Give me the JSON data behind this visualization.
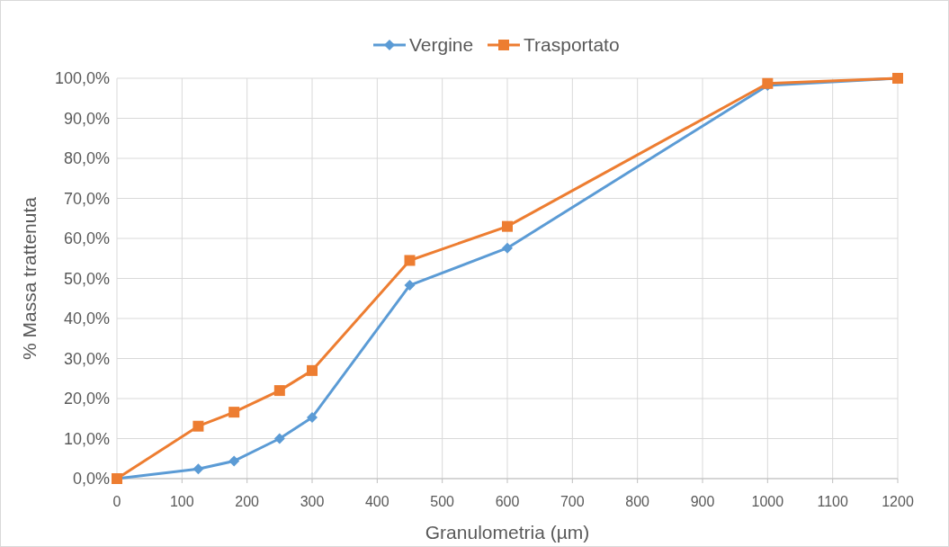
{
  "chart_data": {
    "type": "line",
    "xlabel": "Granulometria (µm)",
    "ylabel": "% Massa trattenuta",
    "xlim": [
      0,
      1200
    ],
    "xticks": [
      0,
      100,
      200,
      300,
      400,
      500,
      600,
      700,
      800,
      900,
      1000,
      1100,
      1200
    ],
    "ylim": [
      0,
      100
    ],
    "yticks": [
      {
        "value": 0,
        "label": "0,0%"
      },
      {
        "value": 10,
        "label": "10,0%"
      },
      {
        "value": 20,
        "label": "20,0%"
      },
      {
        "value": 30,
        "label": "30,0%"
      },
      {
        "value": 40,
        "label": "40,0%"
      },
      {
        "value": 50,
        "label": "50,0%"
      },
      {
        "value": 60,
        "label": "60,0%"
      },
      {
        "value": 70,
        "label": "70,0%"
      },
      {
        "value": 80,
        "label": "80,0%"
      },
      {
        "value": 90,
        "label": "90,0%"
      },
      {
        "value": 100,
        "label": "100,0%"
      }
    ],
    "grid": true,
    "legend": "top",
    "line_style": "solid",
    "series": [
      {
        "name": "Vergine",
        "color": "#5b9bd5",
        "marker": "diamond",
        "x": [
          0,
          125,
          180,
          250,
          300,
          450,
          600,
          1000,
          1200
        ],
        "values": [
          0,
          2.4,
          4.4,
          10.0,
          15.3,
          48.3,
          57.6,
          98.2,
          100
        ]
      },
      {
        "name": "Trasportato",
        "color": "#ed7d31",
        "marker": "square",
        "x": [
          0,
          125,
          180,
          250,
          300,
          450,
          600,
          1000,
          1200
        ],
        "values": [
          0,
          13.1,
          16.6,
          22.0,
          27.0,
          54.5,
          63.0,
          98.7,
          100
        ]
      }
    ]
  }
}
